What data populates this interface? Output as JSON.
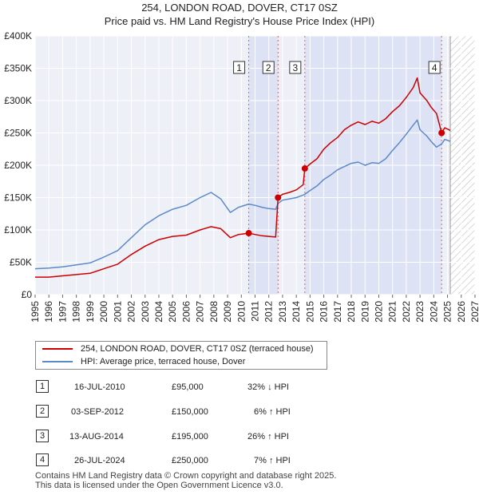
{
  "chart_data": {
    "type": "line",
    "title": "254, LONDON ROAD, DOVER, CT17 0SZ",
    "subtitle": "Price paid vs. HM Land Registry's House Price Index (HPI)",
    "xlim": [
      1995,
      2027
    ],
    "ylim": [
      0,
      400000
    ],
    "x_ticks": [
      "1995",
      "1996",
      "1997",
      "1998",
      "1999",
      "2000",
      "2001",
      "2002",
      "2003",
      "2004",
      "2005",
      "2006",
      "2007",
      "2008",
      "2009",
      "2010",
      "2011",
      "2012",
      "2013",
      "2014",
      "2015",
      "2016",
      "2017",
      "2018",
      "2019",
      "2020",
      "2021",
      "2022",
      "2023",
      "2024",
      "2025",
      "2026",
      "2027"
    ],
    "y_ticks": [
      {
        "value": 0,
        "label": "£0"
      },
      {
        "value": 50000,
        "label": "£50K"
      },
      {
        "value": 100000,
        "label": "£100K"
      },
      {
        "value": 150000,
        "label": "£150K"
      },
      {
        "value": 200000,
        "label": "£200K"
      },
      {
        "value": 250000,
        "label": "£250K"
      },
      {
        "value": 300000,
        "label": "£300K"
      },
      {
        "value": 350000,
        "label": "£350K"
      },
      {
        "value": 400000,
        "label": "£400K"
      }
    ],
    "grid": true,
    "shaded_ranges": [
      [
        2010.54,
        2012.67
      ],
      [
        2014.62,
        2024.57
      ]
    ],
    "hatched_range": [
      2025.2,
      2027
    ],
    "series": [
      {
        "name": "254, LONDON ROAD, DOVER, CT17 0SZ (terraced house)",
        "color": "#cc0000",
        "x": [
          1995.0,
          1996.0,
          1997.0,
          1998.0,
          1999.0,
          2000.0,
          2001.0,
          2002.0,
          2003.0,
          2004.0,
          2005.0,
          2006.0,
          2007.0,
          2007.8,
          2008.5,
          2009.2,
          2009.8,
          2010.54,
          2011.0,
          2011.5,
          2012.0,
          2012.5,
          2012.67,
          2013.0,
          2013.5,
          2014.0,
          2014.5,
          2014.62,
          2015.0,
          2015.5,
          2016.0,
          2016.5,
          2017.0,
          2017.5,
          2018.0,
          2018.5,
          2019.0,
          2019.5,
          2020.0,
          2020.5,
          2021.0,
          2021.5,
          2022.0,
          2022.5,
          2022.8,
          2023.0,
          2023.5,
          2023.8,
          2024.2,
          2024.57,
          2024.8,
          2025.2
        ],
        "values": [
          27000,
          27000,
          29000,
          31000,
          33000,
          40000,
          47000,
          62000,
          75000,
          85000,
          90000,
          92000,
          100000,
          105000,
          102000,
          88000,
          93000,
          95000,
          93000,
          91000,
          90000,
          89000,
          150000,
          155000,
          158000,
          162000,
          170000,
          195000,
          202000,
          210000,
          225000,
          235000,
          243000,
          255000,
          262000,
          267000,
          263000,
          268000,
          265000,
          272000,
          283000,
          292000,
          305000,
          320000,
          335000,
          312000,
          300000,
          290000,
          280000,
          250000,
          258000,
          254000
        ]
      },
      {
        "name": "HPI: Average price, terraced house, Dover",
        "color": "#5b8ac9",
        "x": [
          1995.0,
          1996.0,
          1997.0,
          1998.0,
          1999.0,
          2000.0,
          2001.0,
          2002.0,
          2003.0,
          2004.0,
          2005.0,
          2006.0,
          2007.0,
          2007.8,
          2008.5,
          2009.2,
          2009.8,
          2010.54,
          2011.0,
          2011.5,
          2012.0,
          2012.5,
          2012.67,
          2013.0,
          2013.5,
          2014.0,
          2014.5,
          2014.62,
          2015.0,
          2015.5,
          2016.0,
          2016.5,
          2017.0,
          2017.5,
          2018.0,
          2018.5,
          2019.0,
          2019.5,
          2020.0,
          2020.5,
          2021.0,
          2021.5,
          2022.0,
          2022.5,
          2022.8,
          2023.0,
          2023.5,
          2023.8,
          2024.2,
          2024.57,
          2024.8,
          2025.2
        ],
        "values": [
          40000,
          41000,
          43000,
          46000,
          49000,
          58000,
          68000,
          88000,
          108000,
          122000,
          132000,
          138000,
          150000,
          158000,
          148000,
          127000,
          135000,
          140000,
          138000,
          135000,
          133000,
          132000,
          141000,
          146000,
          148000,
          150000,
          154000,
          155000,
          161000,
          168000,
          178000,
          185000,
          193000,
          198000,
          203000,
          205000,
          200000,
          204000,
          203000,
          210000,
          223000,
          235000,
          248000,
          262000,
          270000,
          255000,
          245000,
          237000,
          228000,
          233000,
          240000,
          237000
        ]
      }
    ],
    "sales": [
      {
        "num": "1",
        "date": "16-JUL-2010",
        "year": 2010.54,
        "price": 95000,
        "price_label": "£95,000",
        "hpi": "32% ↓ HPI"
      },
      {
        "num": "2",
        "date": "03-SEP-2012",
        "year": 2012.67,
        "price": 150000,
        "price_label": "£150,000",
        "hpi": "6% ↑ HPI"
      },
      {
        "num": "3",
        "date": "13-AUG-2014",
        "year": 2014.62,
        "price": 195000,
        "price_label": "£195,000",
        "hpi": "26% ↑ HPI"
      },
      {
        "num": "4",
        "date": "26-JUL-2024",
        "year": 2024.57,
        "price": 250000,
        "price_label": "£250,000",
        "hpi": "7% ↑ HPI"
      }
    ]
  },
  "legend": {
    "red_label": "254, LONDON ROAD, DOVER, CT17 0SZ (terraced house)",
    "blue_label": "HPI: Average price, terraced house, Dover"
  },
  "footer": {
    "line1": "Contains HM Land Registry data © Crown copyright and database right 2025.",
    "line2": "This data is licensed under the Open Government Licence v3.0."
  }
}
